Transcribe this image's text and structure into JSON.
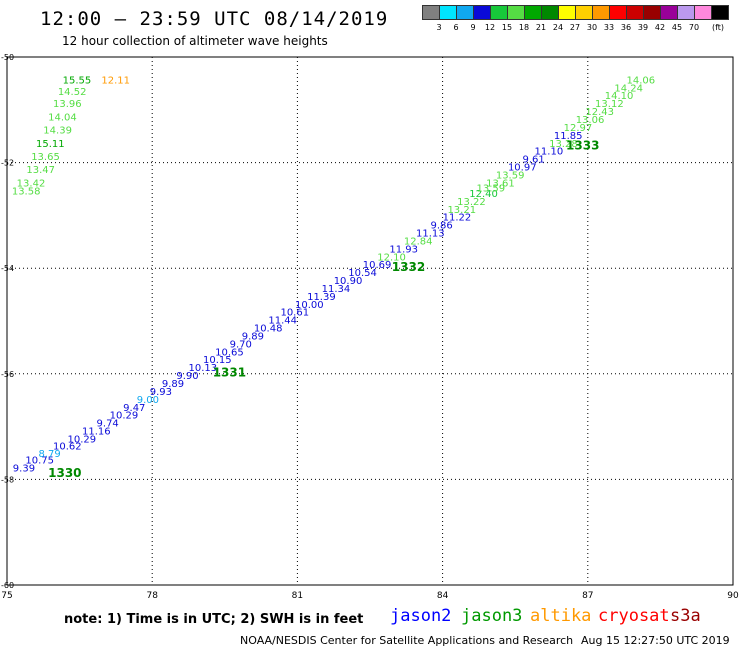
{
  "header": {
    "title": "12:00 – 23:59 UTC 08/14/2019",
    "subtitle": "12 hour collection of altimeter wave heights"
  },
  "legend": {
    "unit": "(ft)",
    "items": [
      {
        "label": "",
        "color": "#808080"
      },
      {
        "label": "3",
        "color": "#00e5ff"
      },
      {
        "label": "6",
        "color": "#10a8f0"
      },
      {
        "label": "9",
        "color": "#0a0ad8"
      },
      {
        "label": "12",
        "color": "#17c83a"
      },
      {
        "label": "15",
        "color": "#55dd44"
      },
      {
        "label": "18",
        "color": "#00a800"
      },
      {
        "label": "21",
        "color": "#008800"
      },
      {
        "label": "24",
        "color": "#ffff00"
      },
      {
        "label": "27",
        "color": "#ffd000"
      },
      {
        "label": "30",
        "color": "#ff9900"
      },
      {
        "label": "33",
        "color": "#ff0000"
      },
      {
        "label": "36",
        "color": "#cc0000"
      },
      {
        "label": "39",
        "color": "#990000"
      },
      {
        "label": "42",
        "color": "#990099"
      },
      {
        "label": "45",
        "color": "#bb99ee"
      },
      {
        "label": "70",
        "color": "#ff88dd"
      },
      {
        "label": "",
        "color": "#000000"
      }
    ]
  },
  "map": {
    "x_ticks": [
      "75",
      "78",
      "81",
      "84",
      "87",
      "90"
    ],
    "y_ticks": [
      "-50",
      "-52",
      "-54",
      "-56",
      "-58",
      "-60"
    ],
    "lon_range": [
      75,
      90
    ],
    "lat_range": [
      -50,
      -60
    ],
    "gridlines": true
  },
  "chart_data": {
    "type": "scatter",
    "x_axis": "longitude",
    "y_axis": "latitude",
    "points": [
      {
        "lon": 75.12,
        "lat": -57.85,
        "v": "9.39",
        "c": "#0a0ad8"
      },
      {
        "lon": 75.38,
        "lat": -57.7,
        "v": "10.75",
        "c": "#0a0ad8"
      },
      {
        "lon": 75.65,
        "lat": -57.58,
        "v": "8.79",
        "c": "#10a8f0"
      },
      {
        "lon": 75.95,
        "lat": -57.43,
        "v": "10.62",
        "c": "#0a0ad8"
      },
      {
        "lon": 76.25,
        "lat": -57.3,
        "v": "10.29",
        "c": "#0a0ad8"
      },
      {
        "lon": 76.55,
        "lat": -57.15,
        "v": "11.16",
        "c": "#0a0ad8"
      },
      {
        "lon": 76.85,
        "lat": -57.0,
        "v": "9.74",
        "c": "#0a0ad8"
      },
      {
        "lon": 77.12,
        "lat": -56.85,
        "v": "10.29",
        "c": "#0a0ad8"
      },
      {
        "lon": 77.4,
        "lat": -56.7,
        "v": "9.47",
        "c": "#0a0ad8"
      },
      {
        "lon": 77.68,
        "lat": -56.55,
        "v": "9.00",
        "c": "#10a8f0"
      },
      {
        "lon": 77.95,
        "lat": -56.4,
        "v": "9.93",
        "c": "#0a0ad8"
      },
      {
        "lon": 78.2,
        "lat": -56.25,
        "v": "9.89",
        "c": "#0a0ad8"
      },
      {
        "lon": 78.5,
        "lat": -56.1,
        "v": "9.90",
        "c": "#0a0ad8"
      },
      {
        "lon": 78.75,
        "lat": -55.95,
        "v": "10.13",
        "c": "#0a0ad8"
      },
      {
        "lon": 79.05,
        "lat": -55.8,
        "v": "10.15",
        "c": "#0a0ad8"
      },
      {
        "lon": 79.3,
        "lat": -55.65,
        "v": "10.65",
        "c": "#0a0ad8"
      },
      {
        "lon": 79.6,
        "lat": -55.5,
        "v": "9.70",
        "c": "#0a0ad8"
      },
      {
        "lon": 79.85,
        "lat": -55.35,
        "v": "9.89",
        "c": "#0a0ad8"
      },
      {
        "lon": 80.1,
        "lat": -55.2,
        "v": "10.48",
        "c": "#0a0ad8"
      },
      {
        "lon": 80.4,
        "lat": -55.05,
        "v": "11.44",
        "c": "#0a0ad8"
      },
      {
        "lon": 80.65,
        "lat": -54.9,
        "v": "10.61",
        "c": "#0a0ad8"
      },
      {
        "lon": 80.95,
        "lat": -54.75,
        "v": "10.00",
        "c": "#0a0ad8"
      },
      {
        "lon": 81.2,
        "lat": -54.6,
        "v": "11.39",
        "c": "#0a0ad8"
      },
      {
        "lon": 81.5,
        "lat": -54.45,
        "v": "11.34",
        "c": "#0a0ad8"
      },
      {
        "lon": 81.75,
        "lat": -54.3,
        "v": "10.90",
        "c": "#0a0ad8"
      },
      {
        "lon": 82.05,
        "lat": -54.15,
        "v": "10.54",
        "c": "#0a0ad8"
      },
      {
        "lon": 82.35,
        "lat": -54.0,
        "v": "10.69",
        "c": "#0a0ad8"
      },
      {
        "lon": 82.65,
        "lat": -53.85,
        "v": "12.10",
        "c": "#55dd44"
      },
      {
        "lon": 82.9,
        "lat": -53.7,
        "v": "11.93",
        "c": "#0a0ad8"
      },
      {
        "lon": 83.2,
        "lat": -53.55,
        "v": "12.84",
        "c": "#55dd44"
      },
      {
        "lon": 83.45,
        "lat": -53.4,
        "v": "11.13",
        "c": "#0a0ad8"
      },
      {
        "lon": 83.75,
        "lat": -53.25,
        "v": "9.86",
        "c": "#0a0ad8"
      },
      {
        "lon": 84.0,
        "lat": -53.1,
        "v": "11.22",
        "c": "#0a0ad8"
      },
      {
        "lon": 84.1,
        "lat": -52.95,
        "v": "13.21",
        "c": "#55dd44"
      },
      {
        "lon": 84.3,
        "lat": -52.8,
        "v": "13.22",
        "c": "#55dd44"
      },
      {
        "lon": 84.55,
        "lat": -52.65,
        "v": "12.40",
        "c": "#17c83a"
      },
      {
        "lon": 84.7,
        "lat": -52.55,
        "v": "13.59",
        "c": "#55dd44"
      },
      {
        "lon": 84.9,
        "lat": -52.45,
        "v": "13.61",
        "c": "#55dd44"
      },
      {
        "lon": 85.1,
        "lat": -52.3,
        "v": "13.59",
        "c": "#55dd44"
      },
      {
        "lon": 85.35,
        "lat": -52.15,
        "v": "10.97",
        "c": "#0a0ad8"
      },
      {
        "lon": 85.65,
        "lat": -52.0,
        "v": "9.61",
        "c": "#0a0ad8"
      },
      {
        "lon": 85.9,
        "lat": -51.85,
        "v": "11.10",
        "c": "#0a0ad8"
      },
      {
        "lon": 86.2,
        "lat": -51.7,
        "v": "13.28",
        "c": "#55dd44"
      },
      {
        "lon": 86.3,
        "lat": -51.55,
        "v": "11.85",
        "c": "#0a0ad8"
      },
      {
        "lon": 86.5,
        "lat": -51.4,
        "v": "12.97",
        "c": "#55dd44"
      },
      {
        "lon": 86.75,
        "lat": -51.25,
        "v": "13.06",
        "c": "#55dd44"
      },
      {
        "lon": 86.95,
        "lat": -51.1,
        "v": "12.43",
        "c": "#55dd44"
      },
      {
        "lon": 87.15,
        "lat": -50.95,
        "v": "13.12",
        "c": "#55dd44"
      },
      {
        "lon": 87.35,
        "lat": -50.8,
        "v": "14.10",
        "c": "#55dd44"
      },
      {
        "lon": 87.55,
        "lat": -50.65,
        "v": "14.24",
        "c": "#55dd44"
      },
      {
        "lon": 87.8,
        "lat": -50.5,
        "v": "14.06",
        "c": "#55dd44"
      },
      {
        "lon": 75.1,
        "lat": -52.6,
        "v": "13.58",
        "c": "#55dd44"
      },
      {
        "lon": 75.2,
        "lat": -52.45,
        "v": "13.42",
        "c": "#55dd44"
      },
      {
        "lon": 75.4,
        "lat": -52.2,
        "v": "13.47",
        "c": "#55dd44"
      },
      {
        "lon": 75.5,
        "lat": -51.95,
        "v": "13.65",
        "c": "#55dd44"
      },
      {
        "lon": 75.6,
        "lat": -51.7,
        "v": "15.11",
        "c": "#00a800"
      },
      {
        "lon": 75.75,
        "lat": -51.45,
        "v": "14.39",
        "c": "#55dd44"
      },
      {
        "lon": 75.85,
        "lat": -51.2,
        "v": "14.04",
        "c": "#55dd44"
      },
      {
        "lon": 75.95,
        "lat": -50.95,
        "v": "13.96",
        "c": "#55dd44"
      },
      {
        "lon": 76.05,
        "lat": -50.72,
        "v": "14.52",
        "c": "#55dd44"
      },
      {
        "lon": 76.15,
        "lat": -50.5,
        "v": "15.55",
        "c": "#00a800"
      },
      {
        "lon": 76.95,
        "lat": -50.5,
        "v": "12.11",
        "c": "#ff9900"
      }
    ],
    "pass_labels": [
      {
        "lon": 75.85,
        "lat": -57.95,
        "v": "1330",
        "c": "#008800"
      },
      {
        "lon": 79.25,
        "lat": -56.05,
        "v": "1331",
        "c": "#008800"
      },
      {
        "lon": 82.95,
        "lat": -54.05,
        "v": "1332",
        "c": "#008800"
      },
      {
        "lon": 86.55,
        "lat": -51.75,
        "v": "1333",
        "c": "#008800"
      }
    ]
  },
  "footer": {
    "note": "note:  1) Time is in UTC;  2) SWH is in feet",
    "satellites": [
      {
        "name": "jason2",
        "color": "#0000ff"
      },
      {
        "name": "jason3",
        "color": "#009900"
      },
      {
        "name": "altika",
        "color": "#ff9900"
      },
      {
        "name": "cryosat",
        "color": "#ff0000"
      },
      {
        "name": "s3a",
        "color": "#990000"
      }
    ],
    "credit": "NOAA/NESDIS Center for Satellite Applications and Research",
    "timestamp": "Aug 15 12:27:50 UTC 2019"
  }
}
